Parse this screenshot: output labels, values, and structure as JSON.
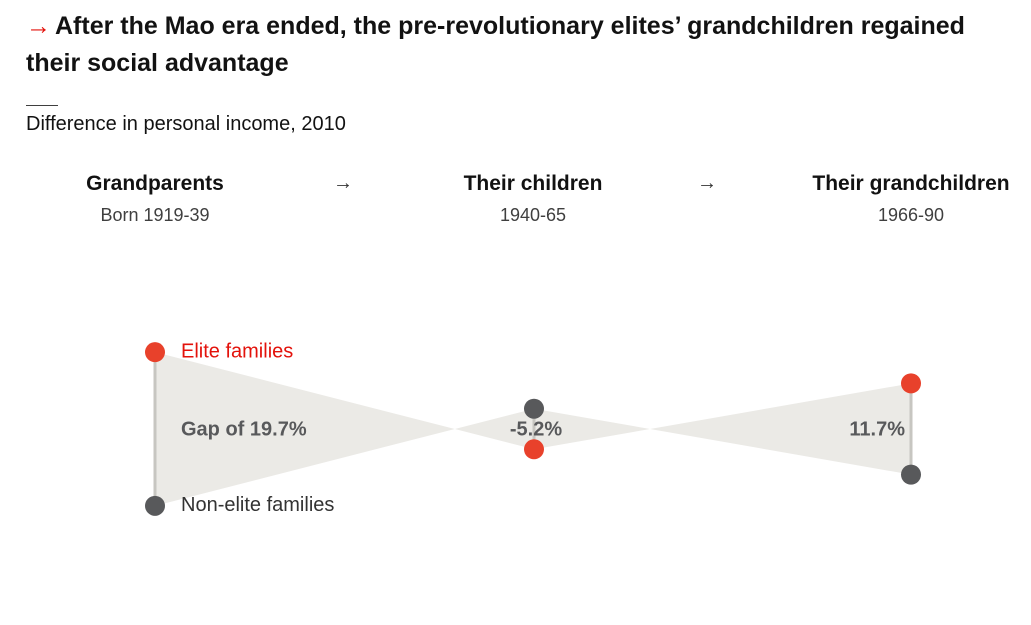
{
  "title_arrow": "→",
  "title": "After the Mao era ended, the pre-revolutionary elites’ grandchildren regained their social advantage",
  "subtitle": "Difference in personal income, 2010",
  "header_arrow_glyph": "→",
  "colors": {
    "elite": "#e8412b",
    "non_elite": "#58595b",
    "band": "#ebeae6",
    "elite_label": "#e3120b",
    "accent_arrow": "#e3120b"
  },
  "chart_data": {
    "type": "dumbbell-band",
    "title": "After the Mao era ended, the pre-revolutionary elites’ grandchildren regained their social advantage",
    "ylabel": "Difference in personal income, 2010",
    "legend": {
      "elite": "Elite families",
      "non_elite": "Non-elite families",
      "placement": "inline"
    },
    "groups": [
      {
        "label": "Grandparents",
        "sublabel": "Born 1919-39",
        "gap": 19.7,
        "gap_label": "Gap of 19.7%"
      },
      {
        "label": "Their children",
        "sublabel": "1940-65",
        "gap": -5.2,
        "gap_label": "-5.2%"
      },
      {
        "label": "Their grandchildren",
        "sublabel": "1966-90",
        "gap": 11.7,
        "gap_label": "11.7%"
      }
    ]
  }
}
